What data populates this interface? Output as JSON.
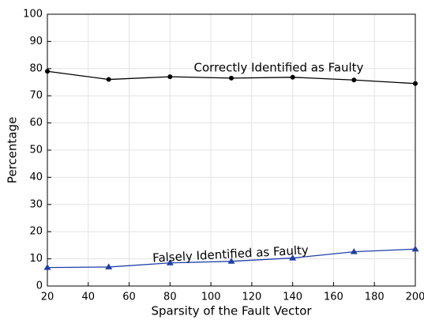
{
  "chart_data": {
    "type": "line",
    "xlabel": "Sparsity of the Fault Vector",
    "ylabel": "Percentage",
    "x": [
      20,
      50,
      80,
      110,
      140,
      170,
      200
    ],
    "series": [
      {
        "name": "Correctly Identified as Faulty",
        "color": "#000000",
        "marker": "circle",
        "values": [
          79,
          76,
          77,
          76.5,
          76.8,
          75.8,
          74.5
        ]
      },
      {
        "name": "Falsely Identified as Faulty",
        "color": "#1f3fa6",
        "marker": "triangle",
        "values": [
          6.8,
          7,
          8.5,
          9.1,
          10.3,
          12.6,
          13.6
        ]
      }
    ],
    "xlim": [
      20,
      200
    ],
    "xticks": [
      20,
      40,
      60,
      80,
      100,
      120,
      140,
      160,
      180,
      200
    ],
    "ylim": [
      0,
      100
    ],
    "yticks": [
      0,
      10,
      20,
      30,
      40,
      50,
      60,
      70,
      80,
      90,
      100
    ],
    "grid": true
  }
}
